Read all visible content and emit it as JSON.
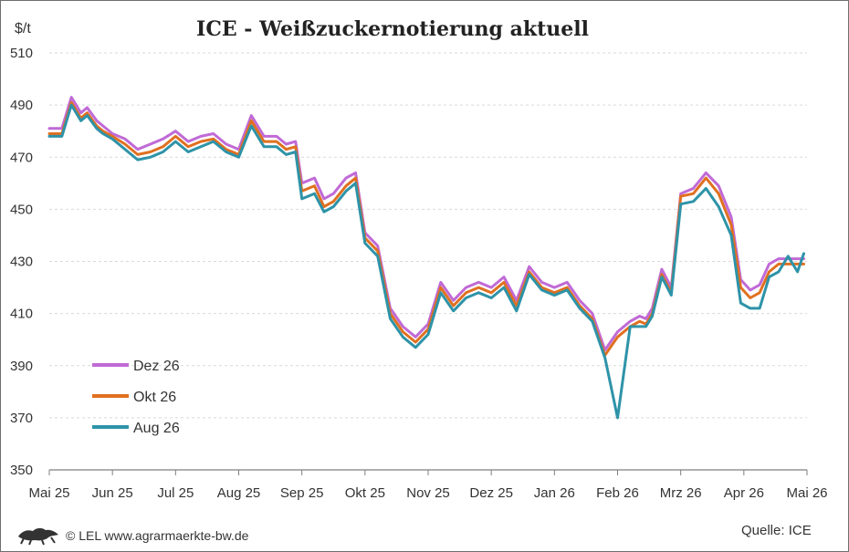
{
  "chart_data": {
    "type": "line",
    "title": "ICE - Weißzuckernotierung aktuell",
    "ylabel": "$/t",
    "ylim": [
      350,
      510
    ],
    "yticks": [
      350,
      370,
      390,
      410,
      430,
      450,
      470,
      490,
      510
    ],
    "xtick_labels": [
      "Mai 25",
      "Jun 25",
      "Jul 25",
      "Aug 25",
      "Sep 25",
      "Okt 25",
      "Nov 25",
      "Dez 25",
      "Jan 26",
      "Feb 26",
      "Mrz 26",
      "Apr 26",
      "Mai 26"
    ],
    "grid": "horizontal",
    "legend_position": "bottom-left",
    "series": [
      {
        "name": "Dez 26",
        "color": "#c06ad6",
        "x": [
          0,
          0.2,
          0.35,
          0.5,
          0.6,
          0.75,
          0.85,
          1,
          1.2,
          1.4,
          1.6,
          1.8,
          2,
          2.2,
          2.4,
          2.6,
          2.8,
          3,
          3.2,
          3.4,
          3.6,
          3.75,
          3.9,
          4,
          4.2,
          4.35,
          4.5,
          4.7,
          4.85,
          5,
          5.2,
          5.4,
          5.6,
          5.8,
          6,
          6.2,
          6.4,
          6.6,
          6.8,
          7,
          7.2,
          7.4,
          7.6,
          7.8,
          8,
          8.2,
          8.4,
          8.6,
          8.8,
          9,
          9.2,
          9.35,
          9.45,
          9.55,
          9.7,
          9.85,
          10,
          10.2,
          10.4,
          10.6,
          10.8,
          10.95,
          11.1,
          11.25,
          11.4,
          11.55,
          11.7,
          11.85,
          11.95
        ],
        "values": [
          481,
          481,
          493,
          487,
          489,
          484,
          482,
          479,
          477,
          473,
          475,
          477,
          480,
          476,
          478,
          479,
          475,
          473,
          486,
          478,
          478,
          475,
          476,
          460,
          462,
          454,
          456,
          462,
          464,
          441,
          436,
          412,
          405,
          401,
          406,
          422,
          415,
          420,
          422,
          420,
          424,
          415,
          428,
          422,
          420,
          422,
          415,
          410,
          396,
          403,
          407,
          409,
          408,
          412,
          427,
          420,
          456,
          458,
          464,
          459,
          447,
          423,
          419,
          421,
          429,
          431,
          431,
          431,
          431
        ]
      },
      {
        "name": "Okt 26",
        "color": "#e07020",
        "x": [
          0,
          0.2,
          0.35,
          0.5,
          0.6,
          0.75,
          0.85,
          1,
          1.2,
          1.4,
          1.6,
          1.8,
          2,
          2.2,
          2.4,
          2.6,
          2.8,
          3,
          3.2,
          3.4,
          3.6,
          3.75,
          3.9,
          4,
          4.2,
          4.35,
          4.5,
          4.7,
          4.85,
          5,
          5.2,
          5.4,
          5.6,
          5.8,
          6,
          6.2,
          6.4,
          6.6,
          6.8,
          7,
          7.2,
          7.4,
          7.6,
          7.8,
          8,
          8.2,
          8.4,
          8.6,
          8.8,
          9,
          9.2,
          9.35,
          9.45,
          9.55,
          9.7,
          9.85,
          10,
          10.2,
          10.4,
          10.6,
          10.8,
          10.95,
          11.1,
          11.25,
          11.4,
          11.55,
          11.7,
          11.85,
          11.95
        ],
        "values": [
          479,
          479,
          491,
          485,
          487,
          482,
          480,
          478,
          475,
          471,
          472,
          474,
          478,
          474,
          476,
          477,
          473,
          471,
          484,
          476,
          476,
          473,
          474,
          457,
          459,
          451,
          453,
          459,
          462,
          439,
          434,
          410,
          403,
          399,
          404,
          420,
          413,
          418,
          420,
          418,
          422,
          413,
          426,
          420,
          418,
          420,
          413,
          408,
          394,
          401,
          405,
          407,
          406,
          410,
          425,
          418,
          455,
          456,
          462,
          456,
          444,
          420,
          416,
          418,
          426,
          429,
          429,
          429,
          429
        ]
      },
      {
        "name": "Aug 26",
        "color": "#2e93a8",
        "x": [
          0,
          0.2,
          0.35,
          0.5,
          0.6,
          0.75,
          0.85,
          1,
          1.2,
          1.4,
          1.6,
          1.8,
          2,
          2.2,
          2.4,
          2.6,
          2.8,
          3,
          3.2,
          3.4,
          3.6,
          3.75,
          3.9,
          4,
          4.2,
          4.35,
          4.5,
          4.7,
          4.85,
          5,
          5.2,
          5.4,
          5.6,
          5.8,
          6,
          6.2,
          6.4,
          6.6,
          6.8,
          7,
          7.2,
          7.4,
          7.6,
          7.8,
          8,
          8.2,
          8.4,
          8.6,
          8.8,
          9,
          9.2,
          9.35,
          9.45,
          9.55,
          9.7,
          9.85,
          10,
          10.2,
          10.4,
          10.6,
          10.8,
          10.95,
          11.1,
          11.25,
          11.4,
          11.55,
          11.7,
          11.85,
          11.95
        ],
        "values": [
          478,
          478,
          490,
          484,
          486,
          481,
          479,
          477,
          473,
          469,
          470,
          472,
          476,
          472,
          474,
          476,
          472,
          470,
          482,
          474,
          474,
          471,
          472,
          454,
          456,
          449,
          451,
          457,
          460,
          437,
          432,
          408,
          401,
          397,
          402,
          418,
          411,
          416,
          418,
          416,
          420,
          411,
          425,
          419,
          417,
          419,
          412,
          407,
          393,
          370,
          405,
          405,
          405,
          409,
          424,
          417,
          452,
          453,
          458,
          451,
          440,
          414,
          412,
          412,
          424,
          426,
          432,
          426,
          433
        ]
      }
    ]
  },
  "footer": {
    "copyright": "© LEL www.agrarmaerkte-bw.de",
    "source": "Quelle: ICE"
  },
  "colors": {
    "grid": "#d9d9d9",
    "axis": "#7f7f7f",
    "border": "#6f6f6f",
    "logo": "#333333"
  }
}
